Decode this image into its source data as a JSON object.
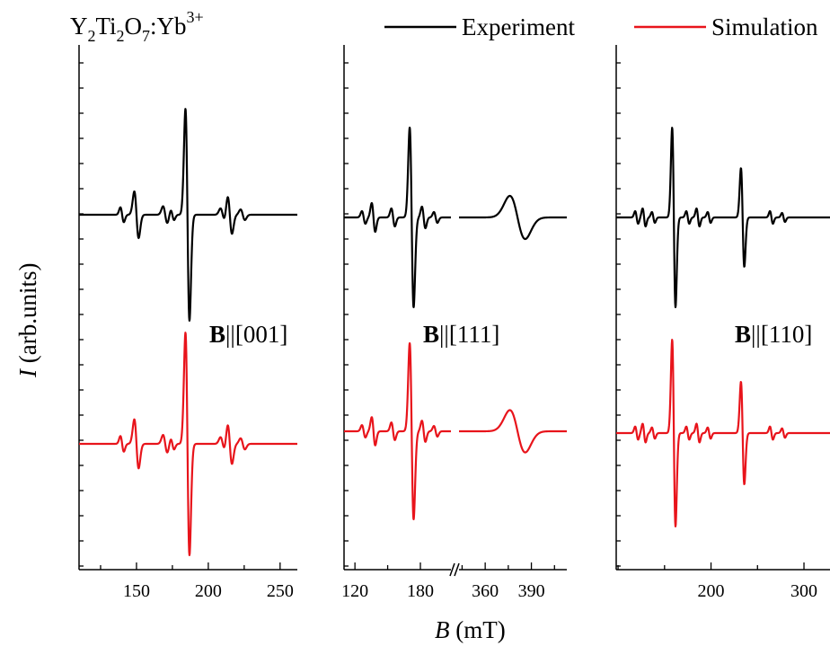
{
  "chart_data": {
    "type": "line",
    "title": "",
    "sample_label": {
      "Y": "Y",
      "two_a": "2",
      "Ti": "Ti",
      "two_b": "2",
      "O": "O",
      "seven": "7",
      "dopant": ":Yb",
      "charge": "3+"
    },
    "ylabel": {
      "symbol": "I",
      "units": " (arb.units)"
    },
    "xlabel": {
      "symbol": "B",
      "units": " (mT)"
    },
    "legend": {
      "placement": "top-right",
      "entries": [
        {
          "name": "Experiment",
          "color": "#000000"
        },
        {
          "name": "Simulation",
          "color": "#e8141b"
        }
      ]
    },
    "panels": [
      {
        "orientation": {
          "bold": "B",
          "rest": "||[001]"
        },
        "xlim": [
          110,
          262
        ],
        "xticks": [
          {
            "value": 150,
            "label": "150"
          },
          {
            "value": 200,
            "label": "200"
          },
          {
            "value": 250,
            "label": "250"
          }
        ],
        "lines": [
          {
            "x": 185.5,
            "amp": 1.0,
            "width": 1.4
          },
          {
            "x": 150.0,
            "amp": 0.22,
            "width": 1.5
          },
          {
            "x": 140.0,
            "amp": 0.07,
            "width": 1.2
          },
          {
            "x": 170.0,
            "amp": 0.08,
            "width": 1.5
          },
          {
            "x": 175.0,
            "amp": 0.05,
            "width": 1.2
          },
          {
            "x": 210.0,
            "amp": 0.06,
            "width": 1.5
          },
          {
            "x": 215.0,
            "amp": 0.18,
            "width": 1.5
          },
          {
            "x": 224.0,
            "amp": 0.05,
            "width": 1.5
          }
        ]
      },
      {
        "orientation": {
          "bold": "B",
          "rest": "||[111]"
        },
        "broken_axis": true,
        "segments": [
          {
            "xlim": [
              110,
              208
            ],
            "xticks": [
              {
                "value": 120,
                "label": "120"
              },
              {
                "value": 180,
                "label": "180"
              }
            ]
          },
          {
            "xlim": [
              343,
              413
            ],
            "xticks": [
              {
                "value": 360,
                "label": "360"
              },
              {
                "value": 390,
                "label": "390"
              }
            ]
          }
        ],
        "lines": [
          {
            "x": 172.0,
            "amp": 1.0,
            "width": 1.8,
            "seg": 0
          },
          {
            "x": 128.0,
            "amp": 0.07,
            "width": 1.6,
            "seg": 0
          },
          {
            "x": 137.0,
            "amp": 0.16,
            "width": 1.6,
            "seg": 0
          },
          {
            "x": 155.0,
            "amp": 0.1,
            "width": 1.6,
            "seg": 0
          },
          {
            "x": 183.0,
            "amp": 0.12,
            "width": 1.6,
            "seg": 0
          },
          {
            "x": 194.0,
            "amp": 0.06,
            "width": 1.6,
            "seg": 0
          },
          {
            "x": 381.0,
            "amp": 0.24,
            "width": 5.0,
            "seg": 1
          }
        ]
      },
      {
        "orientation": {
          "bold": "B",
          "rest": "||[110]"
        },
        "xlim": [
          98,
          328
        ],
        "xticks": [
          {
            "value": 200,
            "label": "200"
          },
          {
            "value": 300,
            "label": "300"
          }
        ],
        "lines": [
          {
            "x": 160.0,
            "amp": 1.0,
            "width": 1.8
          },
          {
            "x": 234.0,
            "amp": 0.55,
            "width": 1.8
          },
          {
            "x": 120.0,
            "amp": 0.07,
            "width": 1.6
          },
          {
            "x": 128.0,
            "amp": 0.1,
            "width": 1.6
          },
          {
            "x": 138.0,
            "amp": 0.06,
            "width": 1.6
          },
          {
            "x": 175.0,
            "amp": 0.07,
            "width": 1.6
          },
          {
            "x": 186.0,
            "amp": 0.1,
            "width": 1.6
          },
          {
            "x": 198.0,
            "amp": 0.06,
            "width": 1.6
          },
          {
            "x": 265.0,
            "amp": 0.07,
            "width": 1.6
          },
          {
            "x": 278.0,
            "amp": 0.05,
            "width": 1.6
          }
        ]
      }
    ]
  }
}
